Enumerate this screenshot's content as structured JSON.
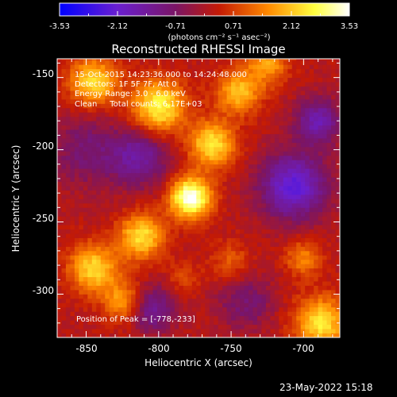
{
  "colorbar": {
    "ticks": [
      "-3.53",
      "-2.12",
      "-0.71",
      "0.71",
      "2.12",
      "3.53"
    ],
    "unit_label": "(photons cm⁻² s⁻¹ asec⁻²)"
  },
  "annotations": {
    "time_range": "15-Oct-2015 14:23:36.000 to 14:24:48.000",
    "detectors": "Detectors: 1F 5F 7F, Att 0",
    "energy_range": "Energy Range: 3.0 - 6.0 keV",
    "clean_counts": "Clean     Total counts: 6.17E+03",
    "peak_position": "Position of Peak = [-778,-233]"
  },
  "footer": {
    "timestamp": "23-May-2022 15:18"
  },
  "chart_data": {
    "type": "heatmap",
    "title": "Reconstructed RHESSI Image",
    "xlabel": "Heliocentric X (arcsec)",
    "ylabel": "Heliocentric Y (arcsec)",
    "xlim": [
      -870,
      -675
    ],
    "ylim": [
      -330,
      -137
    ],
    "xticks": [
      "-850",
      "-800",
      "-750",
      "-700"
    ],
    "yticks": [
      "-150",
      "-200",
      "-250",
      "-300"
    ],
    "xtick_values": [
      -850,
      -800,
      -750,
      -700
    ],
    "ytick_values": [
      -150,
      -200,
      -250,
      -300
    ],
    "value_range": [
      -3.53,
      3.53
    ],
    "colormap": [
      "#0000ff",
      "#6a1fd0",
      "#7a1565",
      "#c41a05",
      "#ff8a00",
      "#ffff40",
      "#ffffff"
    ],
    "peak": [
      -778,
      -233
    ],
    "sources": [
      {
        "x": -778,
        "y": -233,
        "amp": 3.53,
        "sigma": 10
      },
      {
        "x": -763,
        "y": -196,
        "amp": 2.4,
        "sigma": 11
      },
      {
        "x": -812,
        "y": -260,
        "amp": 2.3,
        "sigma": 11
      },
      {
        "x": -845,
        "y": -282,
        "amp": 2.2,
        "sigma": 12
      },
      {
        "x": -824,
        "y": -305,
        "amp": 1.6,
        "sigma": 10
      },
      {
        "x": -800,
        "y": -170,
        "amp": 2.6,
        "sigma": 13
      },
      {
        "x": -845,
        "y": -153,
        "amp": 2.2,
        "sigma": 12
      },
      {
        "x": -745,
        "y": -160,
        "amp": 1.9,
        "sigma": 11
      },
      {
        "x": -725,
        "y": -140,
        "amp": 1.6,
        "sigma": 10
      },
      {
        "x": -688,
        "y": -320,
        "amp": 2.3,
        "sigma": 13
      },
      {
        "x": -700,
        "y": -275,
        "amp": 1.3,
        "sigma": 9
      },
      {
        "x": -750,
        "y": -278,
        "amp": 0.9,
        "sigma": 10
      },
      {
        "x": -783,
        "y": -288,
        "amp": 0.7,
        "sigma": 8
      },
      {
        "x": -813,
        "y": -205,
        "amp": -1.6,
        "sigma": 14
      },
      {
        "x": -850,
        "y": -200,
        "amp": -1.0,
        "sigma": 18
      },
      {
        "x": -707,
        "y": -225,
        "amp": -2.4,
        "sigma": 16
      },
      {
        "x": -740,
        "y": -305,
        "amp": -1.0,
        "sigma": 14
      },
      {
        "x": -805,
        "y": -310,
        "amp": -1.6,
        "sigma": 11
      },
      {
        "x": -690,
        "y": -180,
        "amp": -1.8,
        "sigma": 11
      }
    ]
  }
}
